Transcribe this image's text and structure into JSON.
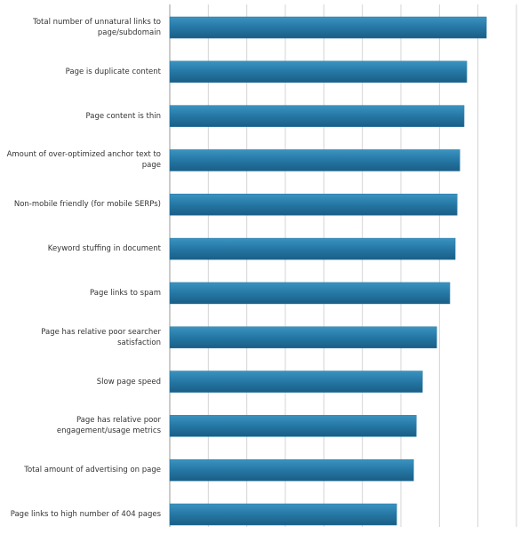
{
  "chart_data": {
    "type": "bar",
    "orientation": "horizontal",
    "categories": [
      "Total number of unnatural links to page/subdomain",
      "Page is duplicate content",
      "Page content is thin",
      "Amount of over-optimized anchor text to page",
      "Non-mobile friendly (for mobile SERPs)",
      "Keyword stuffing in document",
      "Page links to spam",
      "Page has relative poor searcher satisfaction",
      "Slow page speed",
      "Page has relative poor engagement/usage metrics",
      "Total amount of advertising on page",
      "Page links to high number of 404 pages"
    ],
    "values": [
      8.22,
      7.71,
      7.64,
      7.53,
      7.46,
      7.41,
      7.27,
      6.93,
      6.56,
      6.4,
      6.33,
      5.89
    ],
    "color": "#2577a4",
    "xlim": [
      0,
      9
    ],
    "xticks": [
      0,
      1,
      2,
      3,
      4,
      5,
      6,
      7,
      8,
      9
    ],
    "grid": true
  }
}
